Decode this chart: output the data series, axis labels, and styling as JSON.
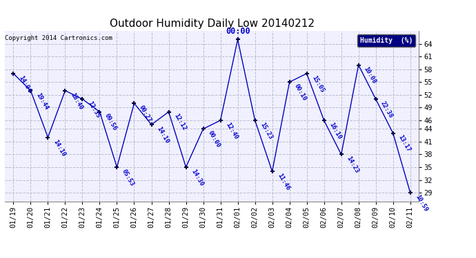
{
  "title": "Outdoor Humidity Daily Low 20140212",
  "copyright": "Copyright 2014 Cartronics.com",
  "legend_label": "Humidity  (%)",
  "x_labels": [
    "01/19",
    "01/20",
    "01/21",
    "01/22",
    "01/23",
    "01/24",
    "01/25",
    "01/26",
    "01/27",
    "01/28",
    "01/29",
    "01/30",
    "01/31",
    "02/01",
    "02/02",
    "02/03",
    "02/04",
    "02/05",
    "02/06",
    "02/07",
    "02/08",
    "02/09",
    "02/10",
    "02/11"
  ],
  "y_values": [
    57,
    53,
    42,
    53,
    51,
    48,
    35,
    50,
    45,
    48,
    35,
    44,
    46,
    65,
    46,
    34,
    55,
    57,
    46,
    38,
    59,
    51,
    43,
    29
  ],
  "point_labels": [
    "14:04",
    "19:44",
    "14:10",
    "18:40",
    "12:35",
    "09:56",
    "05:53",
    "00:27",
    "14:10",
    "12:12",
    "14:30",
    "00:00",
    "12:40",
    "00:00",
    "15:23",
    "11:46",
    "00:10",
    "15:05",
    "16:10",
    "14:23",
    "10:08",
    "22:38",
    "13:17",
    "10:59"
  ],
  "special_label_idx": 13,
  "line_color": "#0000bb",
  "marker_color": "#000044",
  "label_color": "#0000cc",
  "bg_color": "#ffffff",
  "plot_bg_color": "#f0f0ff",
  "grid_color": "#bbbbcc",
  "ylim_min": 27,
  "ylim_max": 67,
  "yticks": [
    29,
    32,
    35,
    38,
    41,
    44,
    46,
    49,
    52,
    55,
    58,
    61,
    64
  ],
  "title_fontsize": 11,
  "label_fontsize": 6.5,
  "tick_fontsize": 7.5,
  "copyright_fontsize": 6.5
}
